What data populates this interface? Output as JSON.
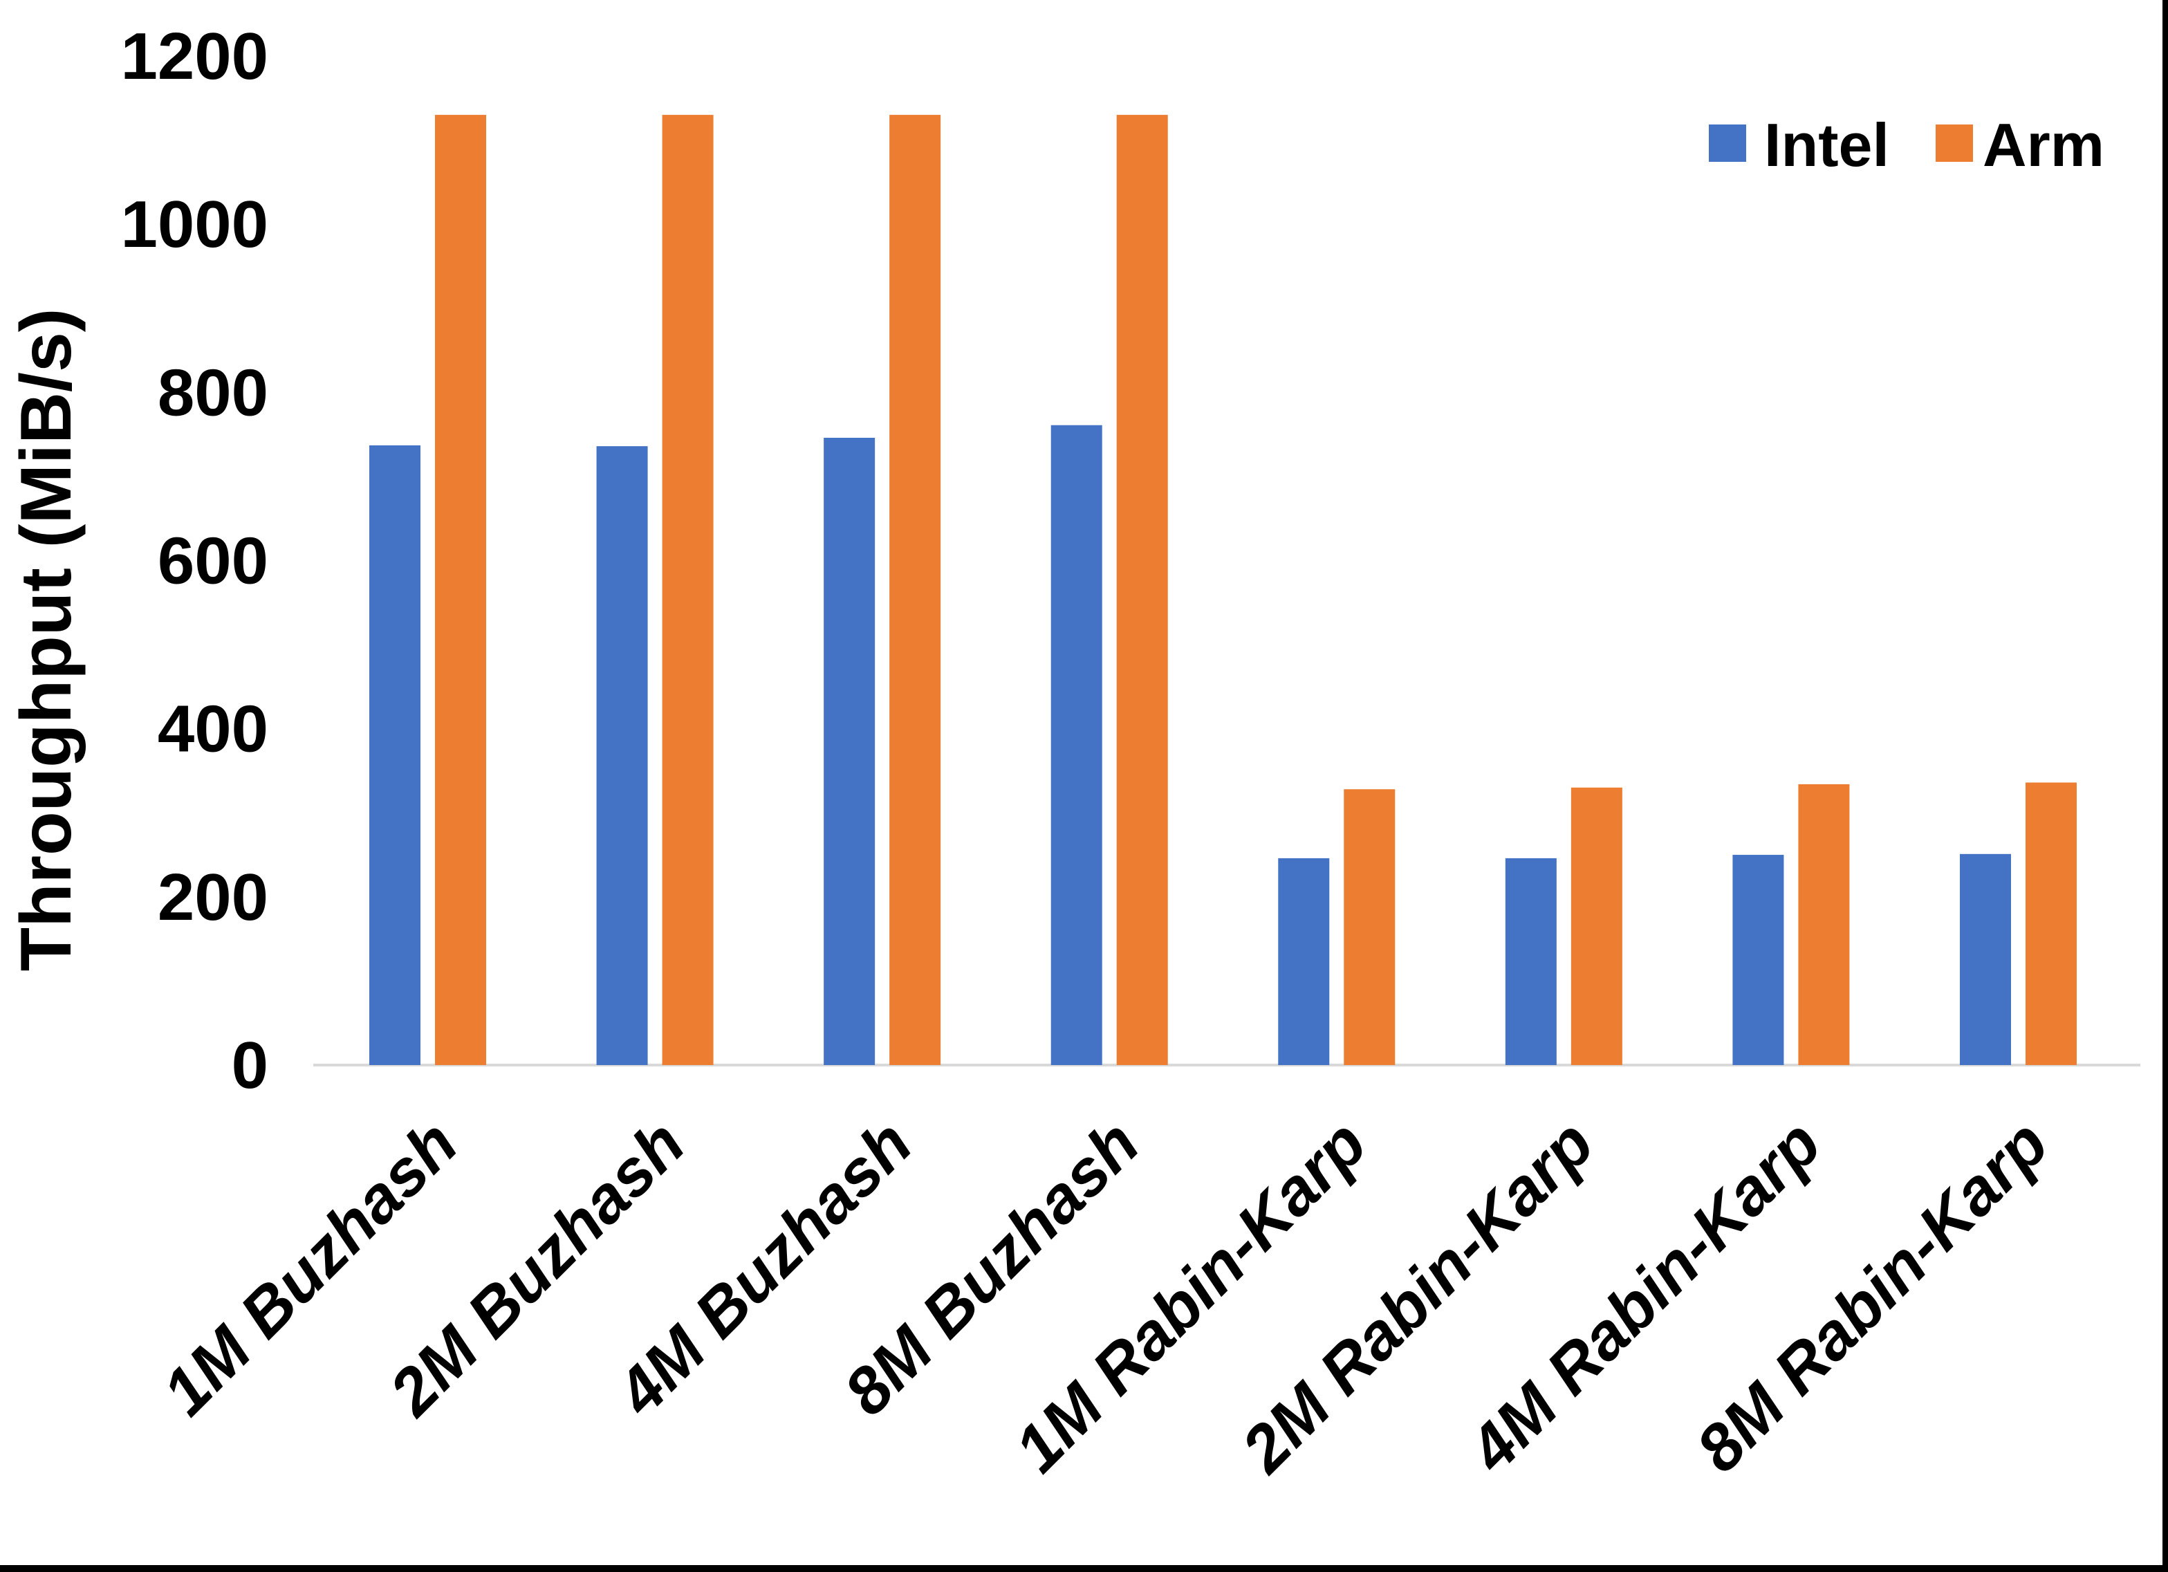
{
  "chart_data": {
    "type": "bar",
    "title": "",
    "xlabel": "",
    "ylabel": "Throughput (MiB/s)",
    "ylim": [
      0,
      1200
    ],
    "yticks": [
      "0",
      "200",
      "400",
      "600",
      "800",
      "1000",
      "1200"
    ],
    "grid": false,
    "legend_position": "top-right",
    "categories": [
      "1M Buzhash",
      "2M Buzhash",
      "4M Buzhash",
      "8M Buzhash",
      "1M Rabin-Karp",
      "2M Rabin-Karp",
      "4M Rabin-Karp",
      "8M Rabin-Karp"
    ],
    "series": [
      {
        "name": "Intel",
        "color": "#4472C4",
        "values": [
          737,
          736,
          746,
          761,
          246,
          246,
          250,
          251
        ]
      },
      {
        "name": "Arm",
        "color": "#ED7D31",
        "values": [
          1130,
          1130,
          1130,
          1130,
          328,
          330,
          334,
          336
        ]
      }
    ],
    "axis_line_color": "#D9D9D9",
    "text_color": "#000000"
  }
}
